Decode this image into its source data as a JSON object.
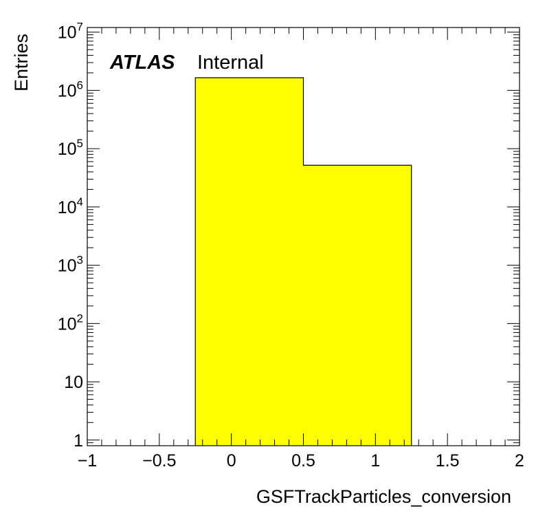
{
  "chart_data": {
    "type": "bar",
    "histogram": true,
    "bins": [
      {
        "low": -0.25,
        "high": 0.5,
        "value": 1650000
      },
      {
        "low": 0.5,
        "high": 1.25,
        "value": 52000
      }
    ],
    "fill_color": "#ffff00",
    "xlabel": "GSFTrackParticles_conversion",
    "ylabel": "Entries",
    "xlim": [
      -1,
      2
    ],
    "ylim": [
      0.8,
      12000000
    ],
    "yscale": "log",
    "grid": false,
    "x_ticks": [
      {
        "value": -1,
        "label": "−1"
      },
      {
        "value": -0.5,
        "label": "−0.5"
      },
      {
        "value": 0,
        "label": "0"
      },
      {
        "value": 0.5,
        "label": "0.5"
      },
      {
        "value": 1,
        "label": "1"
      },
      {
        "value": 1.5,
        "label": "1.5"
      },
      {
        "value": 2,
        "label": "2"
      }
    ],
    "y_ticks": [
      {
        "value": 1,
        "base": "1",
        "exp": ""
      },
      {
        "value": 10,
        "base": "10",
        "exp": ""
      },
      {
        "value": 100,
        "base": "10",
        "exp": "2"
      },
      {
        "value": 1000,
        "base": "10",
        "exp": "3"
      },
      {
        "value": 10000,
        "base": "10",
        "exp": "4"
      },
      {
        "value": 100000,
        "base": "10",
        "exp": "5"
      },
      {
        "value": 1000000,
        "base": "10",
        "exp": "6"
      },
      {
        "value": 10000000,
        "base": "10",
        "exp": "7"
      }
    ]
  },
  "label": {
    "experiment": "ATLAS",
    "status": "Internal"
  }
}
